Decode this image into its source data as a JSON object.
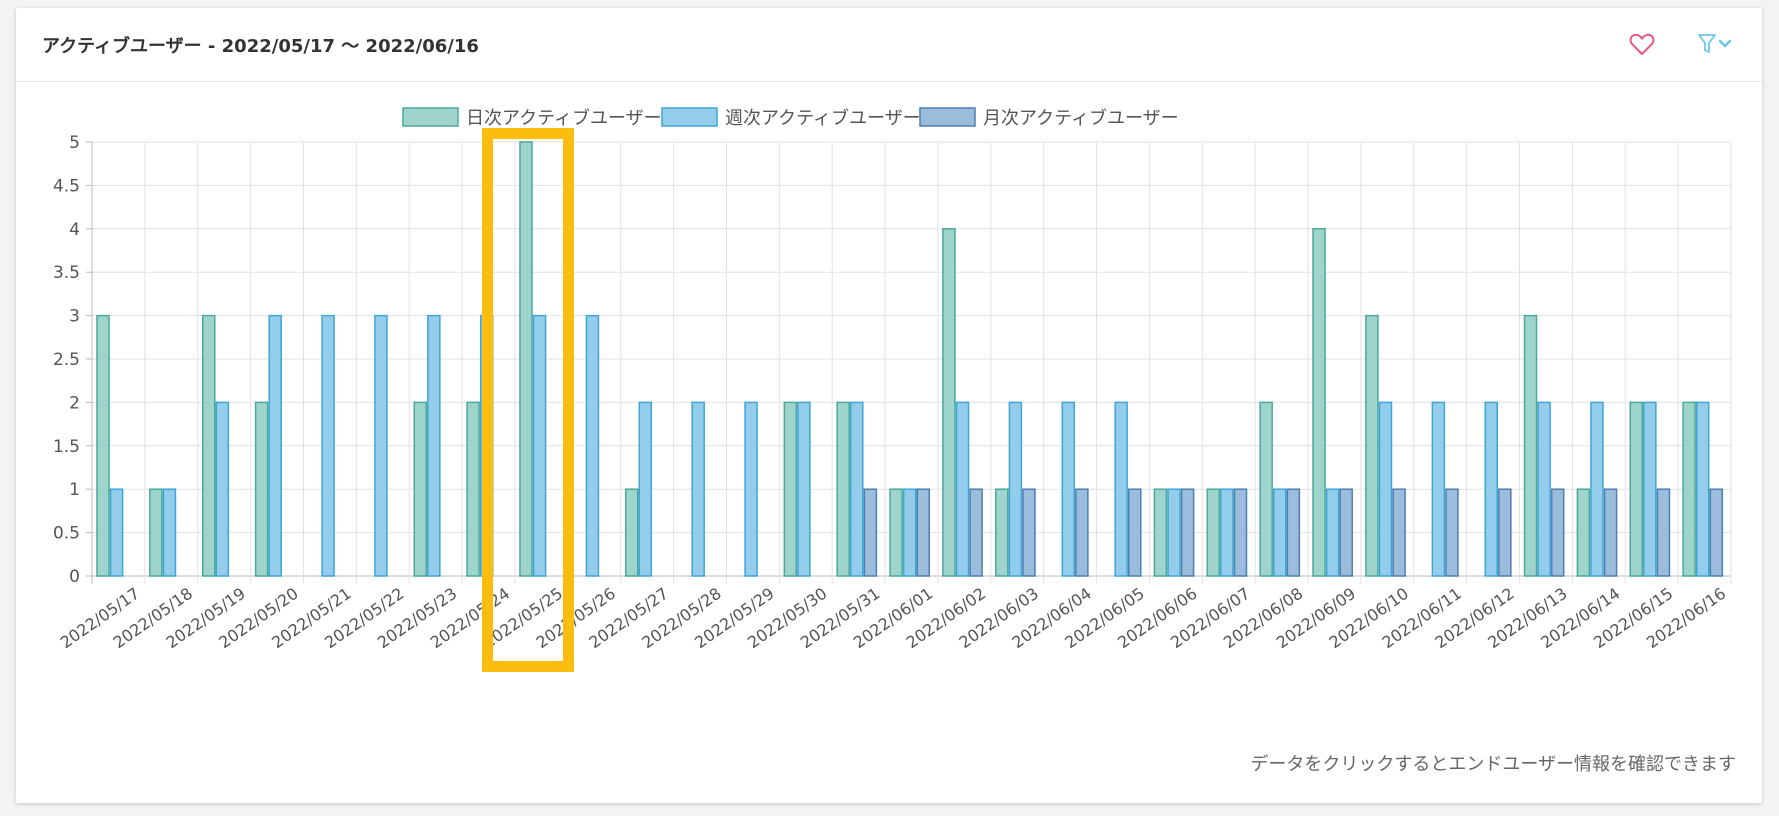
{
  "header": {
    "title": "アクティブユーザー - 2022/05/17 〜 2022/06/16"
  },
  "icons": {
    "favorite": "heart-icon",
    "filter": "filter-icon",
    "dropdown": "chevron-down-icon"
  },
  "footer": {
    "note": "データをクリックするとエンドユーザー情報を確認できます"
  },
  "colors": {
    "daily_fill": "#9fd4cc",
    "daily_stroke": "#4aa89a",
    "weekly_fill": "#93cdeb",
    "weekly_stroke": "#3fa6d4",
    "monthly_fill": "#9bbcdb",
    "monthly_stroke": "#4d7fb0",
    "heart": "#e8578a",
    "filter": "#6ec6ea",
    "highlight": "#fdbd0e"
  },
  "chart_data": {
    "type": "bar",
    "categories": [
      "2022/05/17",
      "2022/05/18",
      "2022/05/19",
      "2022/05/20",
      "2022/05/21",
      "2022/05/22",
      "2022/05/23",
      "2022/05/24",
      "2022/05/25",
      "2022/05/26",
      "2022/05/27",
      "2022/05/28",
      "2022/05/29",
      "2022/05/30",
      "2022/05/31",
      "2022/06/01",
      "2022/06/02",
      "2022/06/03",
      "2022/06/04",
      "2022/06/05",
      "2022/06/06",
      "2022/06/07",
      "2022/06/08",
      "2022/06/09",
      "2022/06/10",
      "2022/06/11",
      "2022/06/12",
      "2022/06/13",
      "2022/06/14",
      "2022/06/15",
      "2022/06/16"
    ],
    "series": [
      {
        "name": "日次アクティブユーザー",
        "values": [
          3,
          1,
          3,
          2,
          0,
          0,
          2,
          2,
          5,
          0,
          1,
          0,
          0,
          2,
          2,
          1,
          4,
          1,
          0,
          0,
          1,
          1,
          2,
          4,
          3,
          0,
          0,
          3,
          1,
          2,
          2
        ]
      },
      {
        "name": "週次アクティブユーザー",
        "values": [
          1,
          1,
          2,
          3,
          3,
          3,
          3,
          3,
          3,
          3,
          2,
          2,
          2,
          2,
          2,
          1,
          2,
          2,
          2,
          2,
          1,
          1,
          1,
          1,
          2,
          2,
          2,
          2,
          2,
          2,
          2
        ]
      },
      {
        "name": "月次アクティブユーザー",
        "values": [
          0,
          0,
          0,
          0,
          0,
          0,
          0,
          0,
          0,
          0,
          0,
          0,
          0,
          0,
          1,
          1,
          1,
          1,
          1,
          1,
          1,
          1,
          1,
          1,
          1,
          1,
          1,
          1,
          1,
          1,
          1
        ]
      }
    ],
    "yticks": [
      "0",
      "0.5",
      "1",
      "1.5",
      "2",
      "2.5",
      "3",
      "3.5",
      "4",
      "4.5",
      "5"
    ],
    "ylim": [
      0,
      5
    ],
    "grid": true,
    "legend_position": "top",
    "highlighted_category": "2022/05/25"
  }
}
